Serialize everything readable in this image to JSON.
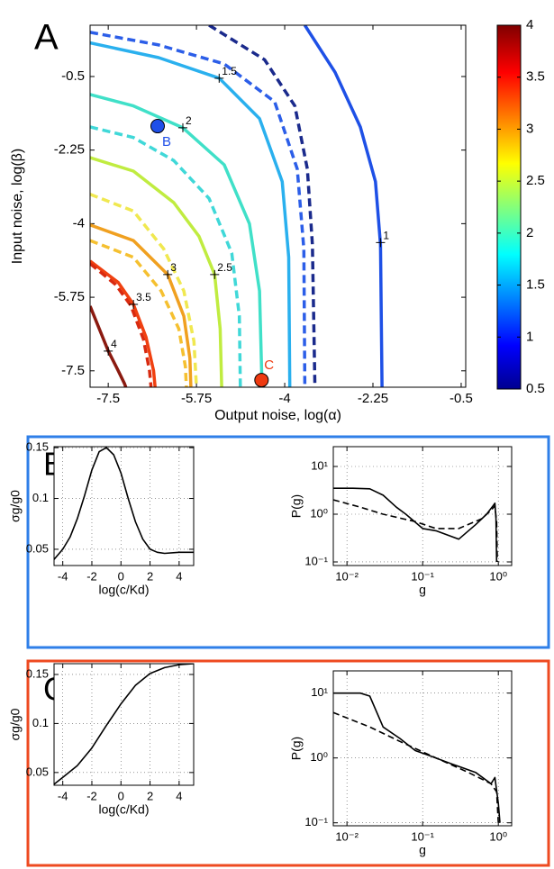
{
  "chart_data": [
    {
      "type": "contour",
      "panel": "A",
      "xlabel": "Output noise, log(α)",
      "ylabel": "Input noise, log(β)",
      "xlim": [
        -7.86,
        -0.41
      ],
      "ylim": [
        -7.89,
        0.72
      ],
      "xticks": [
        -7.5,
        -5.75,
        -4,
        -2.25,
        -0.5
      ],
      "yticks": [
        -7.5,
        -5.75,
        -4,
        -2.25,
        -0.5
      ],
      "series": [
        {
          "color": "#1e50e6",
          "dash": false,
          "x": [
            -3.6,
            -3.0,
            -2.5,
            -2.2,
            -2.1,
            -2.07
          ],
          "values": [
            0.72,
            -0.4,
            -1.7,
            -3.0,
            -4.5,
            -7.89
          ]
        },
        {
          "color": "#1a2a8c",
          "dash": true,
          "x": [
            -5.5,
            -4.4,
            -3.8,
            -3.55,
            -3.45,
            -3.4
          ],
          "values": [
            0.72,
            -0.1,
            -1.2,
            -2.7,
            -4.5,
            -7.89
          ]
        },
        {
          "color": "#2ab0ee",
          "dash": false,
          "x": [
            -7.86,
            -6.5,
            -5.3,
            -4.5,
            -4.05,
            -3.92,
            -3.9
          ],
          "values": [
            0.3,
            -0.05,
            -0.54,
            -1.5,
            -3.0,
            -4.8,
            -7.89
          ]
        },
        {
          "color": "#2c5ee8",
          "dash": true,
          "x": [
            -7.86,
            -6.5,
            -5.2,
            -4.2,
            -3.75,
            -3.62,
            -3.6
          ],
          "values": [
            0.55,
            0.25,
            -0.2,
            -1.1,
            -2.7,
            -4.6,
            -7.89
          ]
        },
        {
          "color": "#40e0c8",
          "dash": false,
          "x": [
            -7.86,
            -7.0,
            -6.02,
            -5.2,
            -4.7,
            -4.5,
            -4.45
          ],
          "values": [
            -0.93,
            -1.2,
            -1.72,
            -2.6,
            -4.0,
            -5.6,
            -7.89
          ]
        },
        {
          "color": "#40d8d8",
          "dash": true,
          "x": [
            -7.86,
            -7.0,
            -6.2,
            -5.5,
            -5.05,
            -4.9,
            -4.88
          ],
          "values": [
            -1.7,
            -1.95,
            -2.5,
            -3.4,
            -4.7,
            -6.2,
            -7.89
          ]
        },
        {
          "color": "#c0ec40",
          "dash": false,
          "x": [
            -7.86,
            -7.0,
            -6.2,
            -5.7,
            -5.39,
            -5.28,
            -5.25
          ],
          "values": [
            -2.43,
            -2.75,
            -3.5,
            -4.3,
            -5.21,
            -6.5,
            -7.89
          ]
        },
        {
          "color": "#f0e850",
          "dash": true,
          "x": [
            -7.86,
            -7.0,
            -6.4,
            -6.0,
            -5.8,
            -5.75
          ],
          "values": [
            -3.3,
            -3.7,
            -4.6,
            -5.6,
            -6.8,
            -7.89
          ]
        },
        {
          "color": "#f0a020",
          "dash": false,
          "x": [
            -7.86,
            -7.0,
            -6.32,
            -6.0,
            -5.88,
            -5.86
          ],
          "values": [
            -4.03,
            -4.4,
            -5.21,
            -6.2,
            -7.2,
            -7.89
          ]
        },
        {
          "color": "#f5c030",
          "dash": true,
          "x": [
            -7.86,
            -7.0,
            -6.45,
            -6.1,
            -5.97,
            -5.95
          ],
          "values": [
            -4.4,
            -4.8,
            -5.6,
            -6.5,
            -7.4,
            -7.89
          ]
        },
        {
          "color": "#f04010",
          "dash": false,
          "x": [
            -7.86,
            -7.3,
            -7.0,
            -6.75,
            -6.6,
            -6.57
          ],
          "values": [
            -4.89,
            -5.4,
            -5.92,
            -6.7,
            -7.5,
            -7.89
          ]
        },
        {
          "color": "#d82a10",
          "dash": true,
          "x": [
            -7.86,
            -7.35,
            -7.05,
            -6.8,
            -6.68,
            -6.65
          ],
          "values": [
            -4.95,
            -5.45,
            -5.95,
            -6.75,
            -7.5,
            -7.89
          ]
        },
        {
          "color": "#8b1a10",
          "dash": false,
          "x": [
            -7.86,
            -7.5,
            -7.3,
            -7.18,
            -7.15
          ],
          "values": [
            -5.96,
            -7.03,
            -7.5,
            -7.8,
            -7.89
          ]
        }
      ],
      "contour_labels": [
        {
          "value": 1,
          "x": -2.1,
          "y": -4.45
        },
        {
          "value": 1.5,
          "x": -5.3,
          "y": -0.54
        },
        {
          "value": 2,
          "x": -6.02,
          "y": -1.72
        },
        {
          "value": 2.5,
          "x": -5.39,
          "y": -5.21
        },
        {
          "value": 3,
          "x": -6.32,
          "y": -5.21
        },
        {
          "value": 3.5,
          "x": -7.0,
          "y": -5.92
        },
        {
          "value": 4,
          "x": -7.5,
          "y": -7.03
        }
      ],
      "points": [
        {
          "label": "B",
          "x": -6.52,
          "y": -1.68,
          "color": "#1f4fe8"
        },
        {
          "label": "C",
          "x": -4.46,
          "y": -7.72,
          "color": "#ee3a10"
        }
      ],
      "colorbar": {
        "lim": [
          0.5,
          4
        ],
        "ticks": [
          0.5,
          1,
          1.5,
          2,
          2.5,
          3,
          3.5,
          4
        ]
      }
    },
    {
      "type": "line",
      "panel": "B",
      "xlabel": "log(c/Kd)",
      "ylabel": "σg/g0",
      "grid": true,
      "xlim": [
        -4.6,
        5
      ],
      "ylim": [
        0.034,
        0.151
      ],
      "xticks": [
        -4,
        -2,
        0,
        2,
        4
      ],
      "yticks": [
        0.05,
        0.1,
        0.15
      ],
      "series": [
        {
          "color": "#000000",
          "dash": false,
          "x": [
            -4.6,
            -4,
            -3.5,
            -3,
            -2.5,
            -2,
            -1.5,
            -1,
            -0.5,
            0,
            0.5,
            1,
            1.5,
            2,
            2.5,
            3,
            4,
            5
          ],
          "values": [
            0.04,
            0.05,
            0.062,
            0.08,
            0.103,
            0.128,
            0.146,
            0.15,
            0.143,
            0.125,
            0.1,
            0.077,
            0.06,
            0.05,
            0.047,
            0.046,
            0.047,
            0.047
          ]
        }
      ]
    },
    {
      "type": "line",
      "xlabel": "g",
      "ylabel": "P(g)",
      "grid": true,
      "xscale": "log",
      "yscale": "log",
      "xlim": [
        0.0066,
        1.5
      ],
      "ylim": [
        0.084,
        26
      ],
      "xticks": [
        {
          "value": 0.01,
          "label": "10⁻²"
        },
        {
          "value": 0.1,
          "label": "10⁻¹"
        },
        {
          "value": 1,
          "label": "10⁰"
        }
      ],
      "yticks": [
        {
          "value": 0.1,
          "label": "10⁻¹"
        },
        {
          "value": 1,
          "label": "10⁰"
        },
        {
          "value": 10,
          "label": "10¹"
        }
      ],
      "series": [
        {
          "color": "#000000",
          "dash": false,
          "x": [
            0.0066,
            0.012,
            0.02,
            0.03,
            0.045,
            0.06,
            0.1,
            0.15,
            0.3,
            0.5,
            0.7,
            0.85,
            0.9,
            0.93,
            0.95
          ],
          "values": [
            3.5,
            3.5,
            3.4,
            2.5,
            1.4,
            1.0,
            0.5,
            0.45,
            0.3,
            0.6,
            1.0,
            1.5,
            1.7,
            0.8,
            0.1
          ]
        },
        {
          "color": "#000000",
          "dash": true,
          "x": [
            0.0066,
            0.015,
            0.03,
            0.08,
            0.15,
            0.3,
            0.6,
            0.8,
            0.9,
            0.95,
            0.97
          ],
          "values": [
            2.0,
            1.4,
            1.0,
            0.7,
            0.5,
            0.5,
            0.8,
            1.2,
            1.5,
            0.7,
            0.1
          ]
        }
      ]
    },
    {
      "type": "line",
      "panel": "C",
      "xlabel": "log(c/Kd)",
      "ylabel": "σg/g0",
      "grid": true,
      "xlim": [
        -4.6,
        5
      ],
      "ylim": [
        0.037,
        0.161
      ],
      "xticks": [
        -4,
        -2,
        0,
        2,
        4
      ],
      "yticks": [
        0.05,
        0.1,
        0.15
      ],
      "series": [
        {
          "color": "#000000",
          "dash": false,
          "x": [
            -4.6,
            -4,
            -3,
            -2,
            -1,
            0,
            1,
            2,
            3,
            4,
            5
          ],
          "values": [
            0.038,
            0.045,
            0.057,
            0.075,
            0.098,
            0.12,
            0.139,
            0.151,
            0.157,
            0.16,
            0.161
          ]
        }
      ]
    },
    {
      "type": "line",
      "xlabel": "g",
      "ylabel": "P(g)",
      "grid": true,
      "xscale": "log",
      "yscale": "log",
      "xlim": [
        0.0066,
        1.5
      ],
      "ylim": [
        0.09,
        22
      ],
      "xticks": [
        {
          "value": 0.01,
          "label": "10⁻²"
        },
        {
          "value": 0.1,
          "label": "10⁻¹"
        },
        {
          "value": 1,
          "label": "10⁰"
        }
      ],
      "yticks": [
        {
          "value": 0.1,
          "label": "10⁻¹"
        },
        {
          "value": 1,
          "label": "10⁰"
        },
        {
          "value": 10,
          "label": "10¹"
        }
      ],
      "series": [
        {
          "color": "#000000",
          "dash": false,
          "x": [
            0.0066,
            0.015,
            0.02,
            0.03,
            0.05,
            0.08,
            0.12,
            0.25,
            0.5,
            0.8,
            0.9,
            1.0,
            1.05
          ],
          "values": [
            10,
            10,
            9,
            3,
            2,
            1.3,
            1.1,
            0.8,
            0.6,
            0.4,
            0.5,
            0.2,
            0.1
          ]
        },
        {
          "color": "#000000",
          "dash": true,
          "x": [
            0.0066,
            0.02,
            0.05,
            0.15,
            0.4,
            0.8,
            0.95,
            1.0
          ],
          "values": [
            5,
            3,
            1.8,
            1,
            0.6,
            0.4,
            0.3,
            0.1
          ]
        }
      ]
    }
  ]
}
